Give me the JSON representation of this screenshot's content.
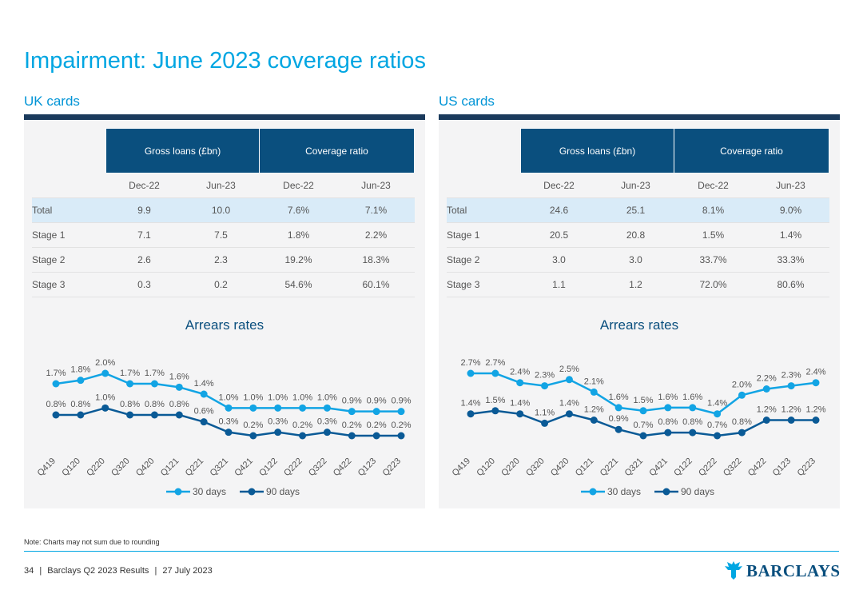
{
  "title": "Impairment: June 2023 coverage ratios",
  "note": "Note: Charts may not sum due to rounding",
  "footer": {
    "page": "34",
    "doc": "Barclays Q2 2023 Results",
    "date": "27 July 2023"
  },
  "logo": {
    "text": "BARCLAYS",
    "icon": "eagle-icon"
  },
  "colors": {
    "accent": "#00a6e2",
    "navy": "#0a4f7e",
    "series30": "#12a4e4",
    "series90": "#0a5a96",
    "totalRow": "#d9ebf8"
  },
  "sections": [
    {
      "label": "UK cards",
      "table": {
        "groups": [
          "Gross loans (£bn)",
          "Coverage ratio"
        ],
        "periods": [
          "Dec-22",
          "Jun-23",
          "Dec-22",
          "Jun-23"
        ],
        "rows": [
          {
            "label": "Total",
            "values": [
              "9.9",
              "10.0",
              "7.6%",
              "7.1%"
            ]
          },
          {
            "label": "Stage 1",
            "values": [
              "7.1",
              "7.5",
              "1.8%",
              "2.2%"
            ]
          },
          {
            "label": "Stage 2",
            "values": [
              "2.6",
              "2.3",
              "19.2%",
              "18.3%"
            ]
          },
          {
            "label": "Stage 3",
            "values": [
              "0.3",
              "0.2",
              "54.6%",
              "60.1%"
            ]
          }
        ]
      },
      "chart_title": "Arrears rates"
    },
    {
      "label": "US cards",
      "table": {
        "groups": [
          "Gross loans (£bn)",
          "Coverage ratio"
        ],
        "periods": [
          "Dec-22",
          "Jun-23",
          "Dec-22",
          "Jun-23"
        ],
        "rows": [
          {
            "label": "Total",
            "values": [
              "24.6",
              "25.1",
              "8.1%",
              "9.0%"
            ]
          },
          {
            "label": "Stage 1",
            "values": [
              "20.5",
              "20.8",
              "1.5%",
              "1.4%"
            ]
          },
          {
            "label": "Stage 2",
            "values": [
              "3.0",
              "3.0",
              "33.7%",
              "33.3%"
            ]
          },
          {
            "label": "Stage 3",
            "values": [
              "1.1",
              "1.2",
              "72.0%",
              "80.6%"
            ]
          }
        ]
      },
      "chart_title": "Arrears rates"
    }
  ],
  "chart_data": [
    {
      "type": "line",
      "title": "Arrears rates",
      "x": [
        "Q419",
        "Q120",
        "Q220",
        "Q320",
        "Q420",
        "Q121",
        "Q221",
        "Q321",
        "Q421",
        "Q122",
        "Q222",
        "Q322",
        "Q422",
        "Q123",
        "Q223"
      ],
      "series": [
        {
          "name": "30 days",
          "values": [
            1.7,
            1.8,
            2.0,
            1.7,
            1.7,
            1.6,
            1.4,
            1.0,
            1.0,
            1.0,
            1.0,
            1.0,
            0.9,
            0.9,
            0.9
          ],
          "labels": [
            "1.7%",
            "1.8%",
            "2.0%",
            "1.7%",
            "1.7%",
            "1.6%",
            "1.4%",
            "1.0%",
            "1.0%",
            "1.0%",
            "1.0%",
            "1.0%",
            "0.9%",
            "0.9%",
            "0.9%"
          ]
        },
        {
          "name": "90 days",
          "values": [
            0.8,
            0.8,
            1.0,
            0.8,
            0.8,
            0.8,
            0.6,
            0.3,
            0.2,
            0.3,
            0.2,
            0.3,
            0.2,
            0.2,
            0.2
          ],
          "labels": [
            "0.8%",
            "0.8%",
            "1.0%",
            "0.8%",
            "0.8%",
            "0.8%",
            "0.6%",
            "0.3%",
            "0.2%",
            "0.3%",
            "0.2%",
            "0.3%",
            "0.2%",
            "0.2%",
            "0.2%"
          ]
        }
      ],
      "legend": "bottom",
      "grid": false
    },
    {
      "type": "line",
      "title": "Arrears rates",
      "x": [
        "Q419",
        "Q120",
        "Q220",
        "Q320",
        "Q420",
        "Q121",
        "Q221",
        "Q321",
        "Q421",
        "Q122",
        "Q222",
        "Q322",
        "Q422",
        "Q123",
        "Q223"
      ],
      "series": [
        {
          "name": "30 days",
          "values": [
            2.7,
            2.7,
            2.4,
            2.3,
            2.5,
            2.1,
            1.6,
            1.5,
            1.6,
            1.6,
            1.4,
            2.0,
            2.2,
            2.3,
            2.4
          ],
          "labels": [
            "2.7%",
            "2.7%",
            "2.4%",
            "2.3%",
            "2.5%",
            "2.1%",
            "1.6%",
            "1.5%",
            "1.6%",
            "1.6%",
            "1.4%",
            "2.0%",
            "2.2%",
            "2.3%",
            "2.4%"
          ]
        },
        {
          "name": "90 days",
          "values": [
            1.4,
            1.5,
            1.4,
            1.1,
            1.4,
            1.2,
            0.9,
            0.7,
            0.8,
            0.8,
            0.7,
            0.8,
            1.2,
            1.2,
            1.2
          ],
          "labels": [
            "1.4%",
            "1.5%",
            "1.4%",
            "1.1%",
            "1.4%",
            "1.2%",
            "0.9%",
            "0.7%",
            "0.8%",
            "0.8%",
            "0.7%",
            "0.8%",
            "1.2%",
            "1.2%",
            "1.2%"
          ]
        }
      ],
      "legend": "bottom",
      "grid": false
    }
  ]
}
